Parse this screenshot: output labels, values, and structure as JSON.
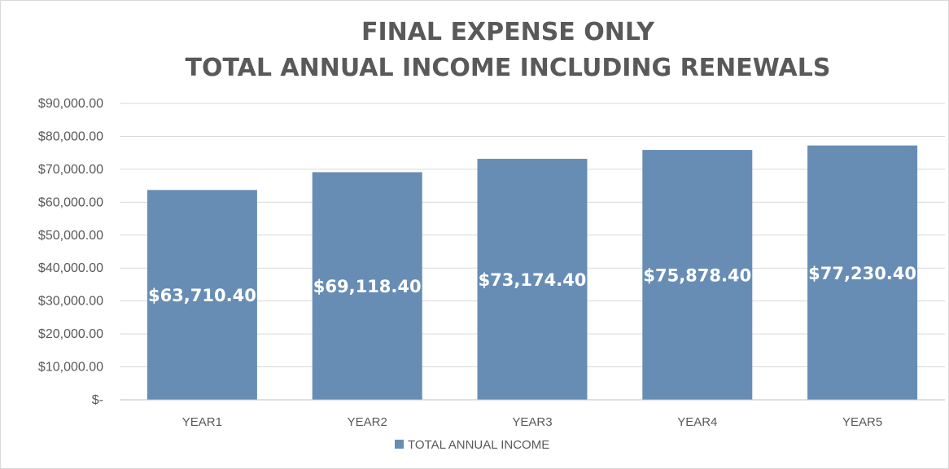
{
  "chart_data": {
    "type": "bar",
    "title": [
      "FINAL EXPENSE ONLY",
      "TOTAL ANNUAL INCOME INCLUDING RENEWALS"
    ],
    "categories": [
      "YEAR1",
      "YEAR2",
      "YEAR3",
      "YEAR4",
      "YEAR5"
    ],
    "series": [
      {
        "name": "TOTAL ANNUAL INCOME",
        "values": [
          63710.4,
          69118.4,
          73174.4,
          75878.4,
          77230.4
        ],
        "data_labels": [
          "$63,710.40",
          "$69,118.40",
          "$73,174.40",
          "$75,878.40",
          "$77,230.40"
        ],
        "color": "#678db5"
      }
    ],
    "ylim": [
      0,
      90000
    ],
    "y_ticks": [
      0,
      10000,
      20000,
      30000,
      40000,
      50000,
      60000,
      70000,
      80000,
      90000
    ],
    "y_tick_labels": [
      "$-",
      "$10,000.00",
      "$20,000.00",
      "$30,000.00",
      "$40,000.00",
      "$50,000.00",
      "$60,000.00",
      "$70,000.00",
      "$80,000.00",
      "$90,000.00"
    ],
    "xlabel": "",
    "ylabel": "",
    "grid": true,
    "legend_position": "bottom",
    "colors": {
      "bar": "#678db5",
      "grid": "#d9d9d9",
      "axis": "#bfbfbf",
      "text": "#595959",
      "data_label": "#ffffff"
    }
  }
}
